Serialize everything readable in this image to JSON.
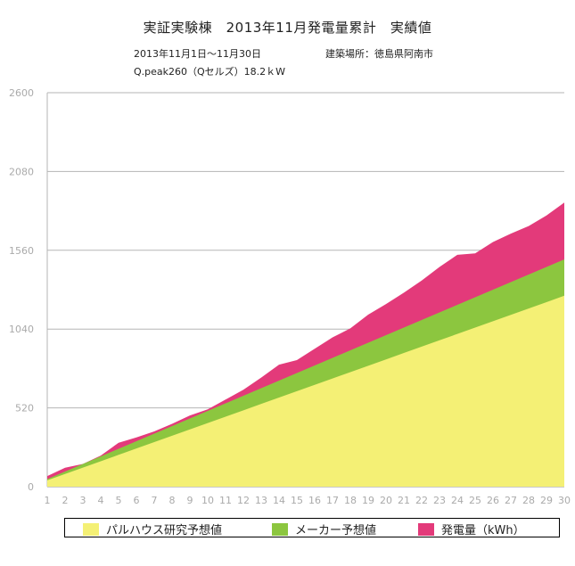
{
  "header": {
    "title": "実証実験棟　2013年11月発電量累計　実績値",
    "period": "2013年11月1日〜11月30日",
    "location": "建築場所：徳島県阿南市",
    "module": "Q.peak260（Qセルズ）18.2ｋW"
  },
  "legend": {
    "paruhausu_label": "パルハウス研究予想値",
    "maker_label": "メーカー予想値",
    "actual_label": "発電量（kWh）"
  },
  "colors": {
    "paruhausu": "#f4f075",
    "maker": "#8cc63f",
    "actual": "#e33a7a",
    "grid": "#b5b5b5",
    "axis_text": "#aaaaaa"
  },
  "chart_data": {
    "type": "area",
    "title": "実証実験棟　2013年11月発電量累計　実績値",
    "xlabel": "",
    "ylabel": "",
    "ylim": [
      0,
      2600
    ],
    "yticks": [
      0,
      520,
      1040,
      1560,
      2080,
      2600
    ],
    "categories": [
      1,
      2,
      3,
      4,
      5,
      6,
      7,
      8,
      9,
      10,
      11,
      12,
      13,
      14,
      15,
      16,
      17,
      18,
      19,
      20,
      21,
      22,
      23,
      24,
      25,
      26,
      27,
      28,
      29,
      30
    ],
    "grid": true,
    "legend_position": "bottom",
    "series": [
      {
        "name": "発電量（kWh）",
        "values": [
          70,
          125,
          150,
          205,
          290,
          325,
          365,
          415,
          470,
          510,
          575,
          640,
          720,
          805,
          835,
          910,
          985,
          1045,
          1135,
          1205,
          1280,
          1360,
          1450,
          1530,
          1540,
          1615,
          1670,
          1720,
          1790,
          1875
        ]
      },
      {
        "name": "メーカー予想値",
        "values": [
          50,
          100,
          150,
          200,
          250,
          300,
          350,
          400,
          450,
          500,
          550,
          600,
          650,
          700,
          750,
          800,
          850,
          900,
          950,
          1000,
          1050,
          1100,
          1150,
          1200,
          1250,
          1300,
          1350,
          1400,
          1450,
          1500
        ]
      },
      {
        "name": "パルハウス研究予想値",
        "values": [
          42,
          84,
          126,
          168,
          210,
          252,
          294,
          336,
          378,
          420,
          462,
          504,
          546,
          588,
          630,
          672,
          714,
          756,
          798,
          840,
          882,
          924,
          966,
          1008,
          1050,
          1092,
          1134,
          1176,
          1218,
          1260
        ]
      }
    ]
  }
}
